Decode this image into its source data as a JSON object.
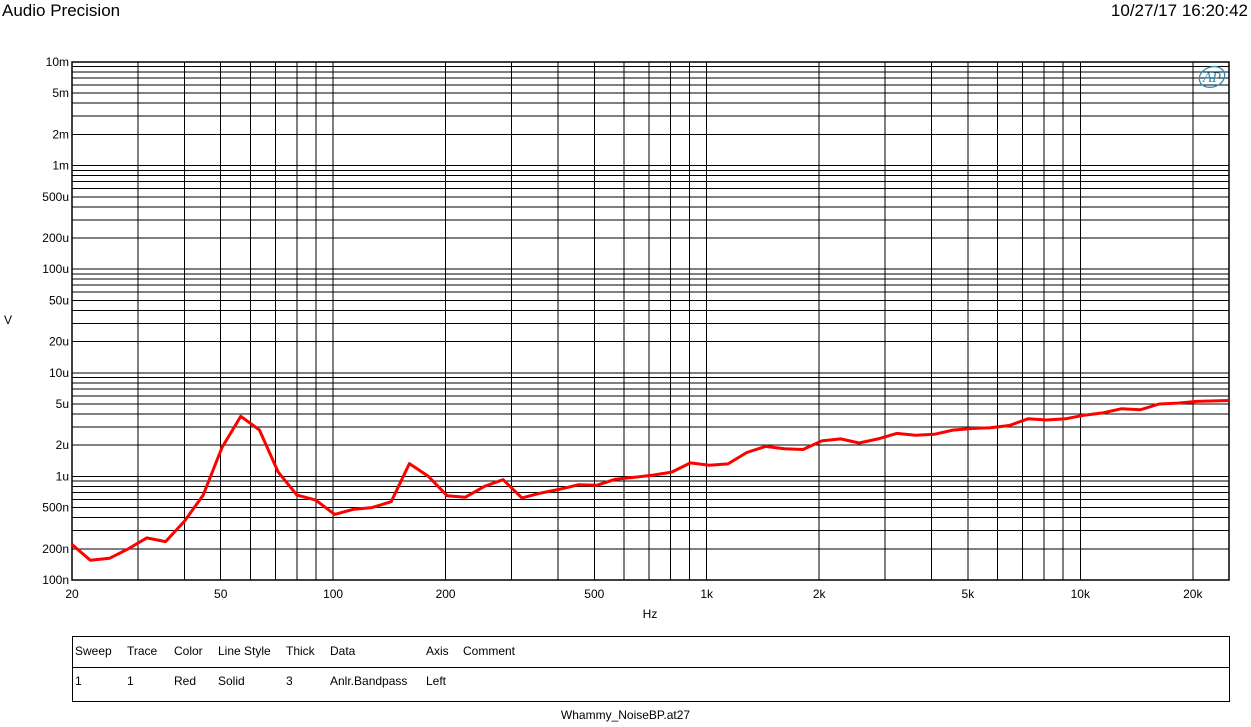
{
  "header": {
    "title": "Audio Precision",
    "timestamp": "10/27/17 16:20:42"
  },
  "logo_text": "AP",
  "colors": {
    "trace": "#ff0000",
    "logo": "#2a8fbf",
    "grid": "#000000"
  },
  "chart_data": {
    "type": "line",
    "xscale": "log",
    "yscale": "log",
    "xlabel": "Hz",
    "ylabel": "V",
    "xlim": [
      20,
      25000
    ],
    "ylim": [
      0.0001,
      0.01
    ],
    "grid": true,
    "x_tick_labels": [
      {
        "v": 20,
        "t": "20"
      },
      {
        "v": 50,
        "t": "50"
      },
      {
        "v": 100,
        "t": "100"
      },
      {
        "v": 200,
        "t": "200"
      },
      {
        "v": 500,
        "t": "500"
      },
      {
        "v": 1000,
        "t": "1k"
      },
      {
        "v": 2000,
        "t": "2k"
      },
      {
        "v": 5000,
        "t": "5k"
      },
      {
        "v": 10000,
        "t": "10k"
      },
      {
        "v": 20000,
        "t": "20k"
      }
    ],
    "y_tick_labels": [
      {
        "v": 0.01,
        "t": "10m"
      },
      {
        "v": 0.005,
        "t": "5m"
      },
      {
        "v": 0.002,
        "t": "2m"
      },
      {
        "v": 0.001,
        "t": "1m"
      },
      {
        "v": 0.0005,
        "t": "500u"
      },
      {
        "v": 0.0002,
        "t": "200u"
      },
      {
        "v": 0.0001,
        "t": "100u"
      },
      {
        "v": 5e-05,
        "t": "50u"
      },
      {
        "v": 2e-05,
        "t": "20u"
      },
      {
        "v": 1e-05,
        "t": "10u"
      },
      {
        "v": 5e-06,
        "t": "5u"
      },
      {
        "v": 2e-06,
        "t": "2u"
      },
      {
        "v": 1e-06,
        "t": "1u"
      },
      {
        "v": 5e-07,
        "t": "500n"
      },
      {
        "v": 2e-07,
        "t": "200n"
      },
      {
        "v": 1e-07,
        "t": "100n"
      }
    ],
    "series": [
      {
        "points": [
          [
            20,
            2.2e-07
          ],
          [
            22.4,
            1.55e-07
          ],
          [
            25.2,
            1.62e-07
          ],
          [
            28.3,
            2e-07
          ],
          [
            31.7,
            2.55e-07
          ],
          [
            35.6,
            2.35e-07
          ],
          [
            40,
            3.7e-07
          ],
          [
            44.9,
            6.6e-07
          ],
          [
            50.4,
            1.9e-06
          ],
          [
            56.6,
            3.8e-06
          ],
          [
            63.5,
            2.8e-06
          ],
          [
            71.3,
            1.1e-06
          ],
          [
            80,
            6.6e-07
          ],
          [
            89.8,
            5.9e-07
          ],
          [
            101,
            4.3e-07
          ],
          [
            113,
            4.8e-07
          ],
          [
            127,
            5e-07
          ],
          [
            143,
            5.7e-07
          ],
          [
            160,
            1.33e-06
          ],
          [
            180,
            1e-06
          ],
          [
            202,
            6.5e-07
          ],
          [
            226,
            6.3e-07
          ],
          [
            254,
            8e-07
          ],
          [
            285,
            9.3e-07
          ],
          [
            320,
            6.2e-07
          ],
          [
            359,
            6.9e-07
          ],
          [
            403,
            7.5e-07
          ],
          [
            453,
            8.3e-07
          ],
          [
            508,
            8.2e-07
          ],
          [
            570,
            9.4e-07
          ],
          [
            640,
            9.8e-07
          ],
          [
            718,
            1.03e-06
          ],
          [
            806,
            1.1e-06
          ],
          [
            905,
            1.35e-06
          ],
          [
            1016,
            1.28e-06
          ],
          [
            1140,
            1.32e-06
          ],
          [
            1280,
            1.7e-06
          ],
          [
            1437,
            1.95e-06
          ],
          [
            1613,
            1.85e-06
          ],
          [
            1810,
            1.82e-06
          ],
          [
            2032,
            2.2e-06
          ],
          [
            2281,
            2.3e-06
          ],
          [
            2560,
            2.1e-06
          ],
          [
            2874,
            2.3e-06
          ],
          [
            3226,
            2.6e-06
          ],
          [
            3621,
            2.5e-06
          ],
          [
            4064,
            2.55e-06
          ],
          [
            4562,
            2.8e-06
          ],
          [
            5121,
            2.9e-06
          ],
          [
            5748,
            2.95e-06
          ],
          [
            6452,
            3.1e-06
          ],
          [
            7242,
            3.6e-06
          ],
          [
            8129,
            3.5e-06
          ],
          [
            9125,
            3.6e-06
          ],
          [
            10243,
            3.9e-06
          ],
          [
            11497,
            4.1e-06
          ],
          [
            12905,
            4.5e-06
          ],
          [
            14486,
            4.4e-06
          ],
          [
            16260,
            5e-06
          ],
          [
            18252,
            5.1e-06
          ],
          [
            20487,
            5.3e-06
          ],
          [
            25000,
            5.4e-06
          ]
        ]
      }
    ]
  },
  "legend": {
    "headers": [
      "Sweep",
      "Trace",
      "Color",
      "Line Style",
      "Thick",
      "Data",
      "Axis",
      "Comment"
    ],
    "rows": [
      [
        "1",
        "1",
        "Red",
        "Solid",
        "3",
        "Anlr.Bandpass",
        "Left",
        ""
      ]
    ]
  },
  "footer": {
    "filename": "Whammy_NoiseBP.at27"
  }
}
